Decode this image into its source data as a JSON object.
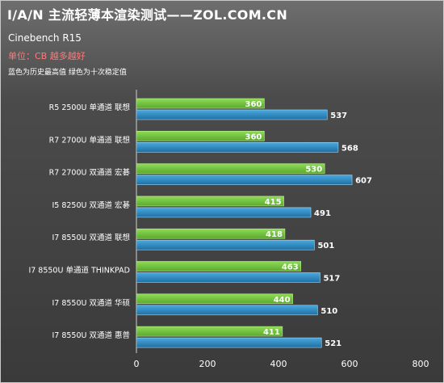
{
  "header": {
    "title": "I/A/N 主流轻薄本渲染测试——ZOL.COM.CN",
    "subtitle": "Cinebench R15",
    "unit": "单位：CB 越多越好",
    "note": "蓝色为历史最高值 绿色为十次稳定值"
  },
  "colors": {
    "green_bar": "#6fc23f",
    "blue_bar": "#2f8fc6",
    "background": "#4b4b4b"
  },
  "chart_data": {
    "type": "bar",
    "orientation": "horizontal",
    "categories": [
      "R5 2500U 单通道 联想",
      "R7 2700U 单通道 联想",
      "R7 2700U 双通道 宏碁",
      "I5 8250U 双通道 宏碁",
      "I7 8550U 双通道 联想",
      "I7 8550U 单通道 THINKPAD",
      "I7 8550U 双通道 华硕",
      "I7 8550U 双通道 惠普"
    ],
    "series": [
      {
        "values": [
          360,
          360,
          530,
          415,
          418,
          463,
          440,
          411
        ],
        "color": "#6fc23f"
      },
      {
        "values": [
          537,
          568,
          607,
          491,
          501,
          517,
          510,
          521
        ],
        "color": "#2f8fc6"
      }
    ],
    "xlim": [
      0,
      800
    ],
    "xticks": [
      "0",
      "200",
      "400",
      "600",
      "800"
    ],
    "grid": false,
    "legend": "none"
  }
}
